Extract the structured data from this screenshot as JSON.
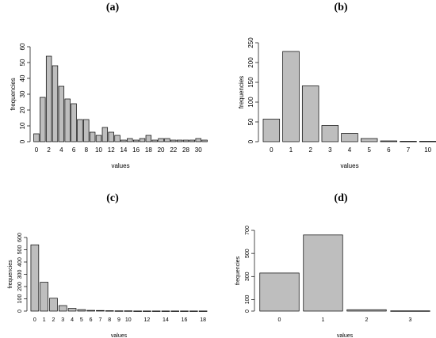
{
  "chart_data": [
    {
      "panel": "(a)",
      "type": "bar",
      "xlabel": "values",
      "ylabel": "frequencies",
      "ylim": [
        0,
        60
      ],
      "yticks": [
        0,
        10,
        20,
        30,
        40,
        50,
        60
      ],
      "categories": [
        "0",
        "1",
        "2",
        "3",
        "4",
        "5",
        "6",
        "7",
        "8",
        "9",
        "10",
        "11",
        "12",
        "13",
        "14",
        "15",
        "16",
        "17",
        "18",
        "19",
        "20",
        "21",
        "22",
        "25",
        "28",
        "29",
        "30",
        "31"
      ],
      "tick_labels": [
        "0",
        "2",
        "4",
        "6",
        "8",
        "10",
        "12",
        "14",
        "16",
        "18",
        "20",
        "22",
        "28",
        "30"
      ],
      "values": [
        5,
        28,
        54,
        48,
        35,
        27,
        24,
        14,
        14,
        6,
        4,
        9,
        6,
        4,
        1,
        2,
        1,
        2,
        4,
        1,
        2,
        2,
        1,
        1,
        1,
        1,
        2,
        1
      ],
      "bar_color": "#bebebe"
    },
    {
      "panel": "(b)",
      "type": "bar",
      "xlabel": "values",
      "ylabel": "frequencies",
      "ylim": [
        0,
        250
      ],
      "yticks": [
        0,
        50,
        100,
        150,
        200,
        250
      ],
      "categories": [
        "0",
        "1",
        "2",
        "3",
        "4",
        "5",
        "6",
        "7",
        "10"
      ],
      "tick_labels": [
        "0",
        "1",
        "2",
        "3",
        "4",
        "5",
        "6",
        "7",
        "10"
      ],
      "values": [
        57,
        228,
        141,
        41,
        21,
        8,
        2,
        1,
        1
      ],
      "bar_color": "#bebebe"
    },
    {
      "panel": "(c)",
      "type": "bar",
      "xlabel": "values",
      "ylabel": "frequencies",
      "ylim": [
        0,
        600
      ],
      "yticks": [
        0,
        100,
        200,
        300,
        400,
        500,
        600
      ],
      "categories": [
        "0",
        "1",
        "2",
        "3",
        "4",
        "5",
        "6",
        "7",
        "8",
        "9",
        "10",
        "11",
        "12",
        "13",
        "14",
        "15",
        "16",
        "17",
        "18"
      ],
      "tick_labels": [
        "0",
        "1",
        "2",
        "3",
        "4",
        "5",
        "6",
        "7",
        "8",
        "9",
        "10",
        "12",
        "14",
        "16",
        "18"
      ],
      "values": [
        540,
        235,
        105,
        45,
        22,
        12,
        6,
        5,
        3,
        2,
        2,
        1,
        1,
        1,
        1,
        1,
        1,
        1,
        1
      ],
      "bar_color": "#bebebe"
    },
    {
      "panel": "(d)",
      "type": "bar",
      "xlabel": "values",
      "ylabel": "frequencies",
      "ylim": [
        0,
        700
      ],
      "yticks": [
        0,
        100,
        300,
        500,
        700
      ],
      "categories": [
        "0",
        "1",
        "2",
        "3"
      ],
      "tick_labels": [
        "0",
        "1",
        "2",
        "3"
      ],
      "values": [
        330,
        660,
        12,
        2
      ],
      "bar_color": "#bebebe"
    }
  ]
}
